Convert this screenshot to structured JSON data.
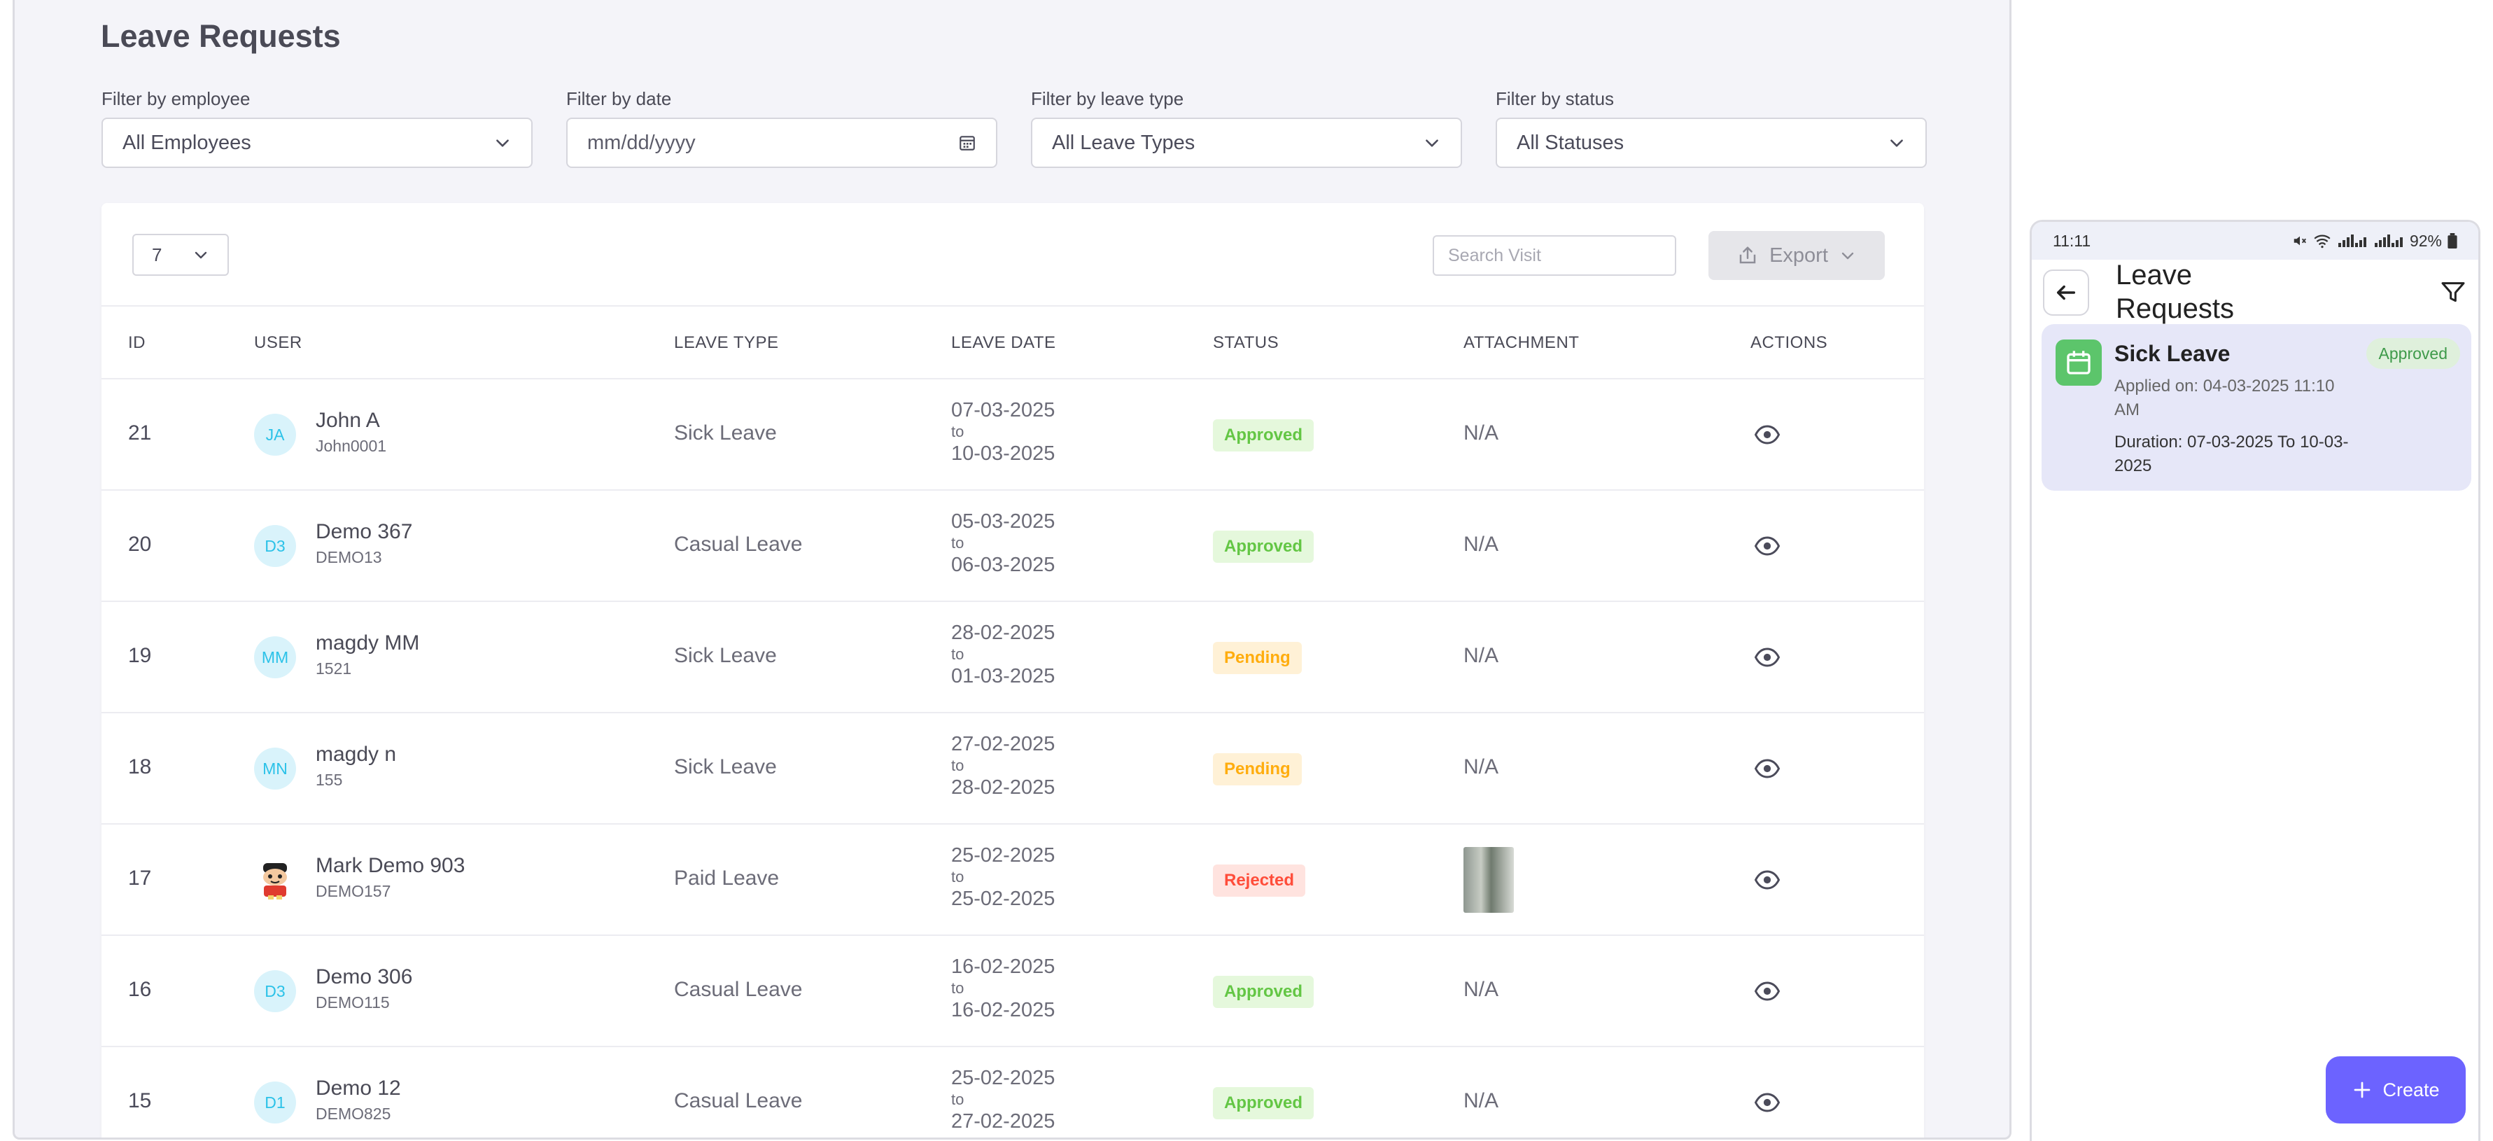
{
  "page": {
    "title": "Leave Requests"
  },
  "filters": [
    {
      "label": "Filter by employee",
      "value": "All Employees"
    },
    {
      "label": "Filter by date",
      "value": "mm/dd/yyyy"
    },
    {
      "label": "Filter by leave type",
      "value": "All Leave Types"
    },
    {
      "label": "Filter by status",
      "value": "All Statuses"
    }
  ],
  "table_controls": {
    "page_size": "7",
    "search_placeholder": "Search Visit",
    "export_label": "Export"
  },
  "columns": [
    "ID",
    "USER",
    "LEAVE TYPE",
    "LEAVE DATE",
    "STATUS",
    "ATTACHMENT",
    "ACTIONS"
  ],
  "rows": [
    {
      "id": "21",
      "initials": "JA",
      "name": "John A",
      "uid": "John0001",
      "type": "Sick Leave",
      "from": "07-03-2025",
      "to_word": "to",
      "to": "10-03-2025",
      "status": "Approved",
      "attachment": "N/A"
    },
    {
      "id": "20",
      "initials": "D3",
      "name": "Demo 367",
      "uid": "DEMO13",
      "type": "Casual Leave",
      "from": "05-03-2025",
      "to_word": "to",
      "to": "06-03-2025",
      "status": "Approved",
      "attachment": "N/A"
    },
    {
      "id": "19",
      "initials": "MM",
      "name": "magdy MM",
      "uid": "1521",
      "type": "Sick Leave",
      "from": "28-02-2025",
      "to_word": "to",
      "to": "01-03-2025",
      "status": "Pending",
      "attachment": "N/A"
    },
    {
      "id": "18",
      "initials": "MN",
      "name": "magdy n",
      "uid": "155",
      "type": "Sick Leave",
      "from": "27-02-2025",
      "to_word": "to",
      "to": "28-02-2025",
      "status": "Pending",
      "attachment": "N/A"
    },
    {
      "id": "17",
      "initials": "",
      "name": "Mark Demo 903",
      "uid": "DEMO157",
      "type": "Paid Leave",
      "from": "25-02-2025",
      "to_word": "to",
      "to": "25-02-2025",
      "status": "Rejected",
      "attachment": ""
    },
    {
      "id": "16",
      "initials": "D3",
      "name": "Demo 306",
      "uid": "DEMO115",
      "type": "Casual Leave",
      "from": "16-02-2025",
      "to_word": "to",
      "to": "16-02-2025",
      "status": "Approved",
      "attachment": "N/A"
    },
    {
      "id": "15",
      "initials": "D1",
      "name": "Demo 12",
      "uid": "DEMO825",
      "type": "Casual Leave",
      "from": "25-02-2025",
      "to_word": "to",
      "to": "27-02-2025",
      "status": "Approved",
      "attachment": "N/A"
    }
  ],
  "mobile": {
    "time": "11:11",
    "battery": "92%",
    "title": "Leave Requests",
    "card": {
      "title": "Sick Leave",
      "status": "Approved",
      "applied": "Applied on: 04-03-2025 11:10 AM",
      "duration": "Duration: 07-03-2025 To 10-03-2025"
    },
    "create_label": "Create"
  },
  "colors": {
    "accent": "#6c63ff",
    "approved": "#63c644",
    "pending": "#ffad0e",
    "rejected": "#ff4d3a",
    "avatar": "#2cc2e8"
  }
}
